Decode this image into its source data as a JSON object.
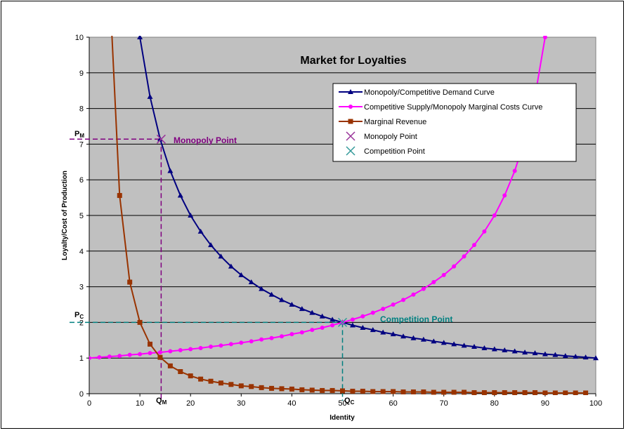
{
  "chart_data": {
    "type": "line",
    "title": "Market for Loyalties",
    "xlabel": "Identity",
    "ylabel": "Loyalty/Cost of Production",
    "xlim": [
      0,
      100
    ],
    "ylim": [
      0,
      10
    ],
    "x_ticks": [
      0,
      10,
      20,
      30,
      40,
      50,
      60,
      70,
      80,
      90,
      100
    ],
    "y_ticks": [
      0,
      1,
      2,
      3,
      4,
      5,
      6,
      7,
      8,
      9,
      10
    ],
    "grid": "horizontal",
    "background": "#c0c0c0",
    "legend_position": "top-right",
    "series": [
      {
        "name": "Monopoly/Competitive Demand Curve",
        "color": "#000080",
        "marker": "triangle",
        "x": [
          10,
          12,
          14,
          16,
          18,
          20,
          22,
          24,
          26,
          28,
          30,
          32,
          34,
          36,
          38,
          40,
          42,
          44,
          46,
          48,
          50,
          52,
          54,
          56,
          58,
          60,
          62,
          64,
          66,
          68,
          70,
          72,
          74,
          76,
          78,
          80,
          82,
          84,
          86,
          88,
          90,
          92,
          94,
          96,
          98,
          100
        ],
        "y": [
          10,
          8.33,
          7.14,
          6.25,
          5.56,
          5,
          4.55,
          4.17,
          3.85,
          3.57,
          3.33,
          3.13,
          2.94,
          2.78,
          2.63,
          2.5,
          2.38,
          2.27,
          2.17,
          2.08,
          2,
          1.92,
          1.85,
          1.79,
          1.72,
          1.67,
          1.61,
          1.56,
          1.52,
          1.47,
          1.43,
          1.39,
          1.35,
          1.32,
          1.28,
          1.25,
          1.22,
          1.19,
          1.16,
          1.14,
          1.11,
          1.09,
          1.06,
          1.04,
          1.02,
          1
        ]
      },
      {
        "name": "Competitive Supply/Monopoly Marginal Costs Curve",
        "color": "#ff00ff",
        "marker": "circle",
        "x": [
          0,
          2,
          4,
          6,
          8,
          10,
          12,
          14,
          16,
          18,
          20,
          22,
          24,
          26,
          28,
          30,
          32,
          34,
          36,
          38,
          40,
          42,
          44,
          46,
          48,
          50,
          52,
          54,
          56,
          58,
          60,
          62,
          64,
          66,
          68,
          70,
          72,
          74,
          76,
          78,
          80,
          82,
          84,
          86,
          88,
          90
        ],
        "y": [
          1,
          1.02,
          1.04,
          1.06,
          1.09,
          1.11,
          1.14,
          1.16,
          1.19,
          1.22,
          1.25,
          1.28,
          1.32,
          1.35,
          1.39,
          1.43,
          1.47,
          1.52,
          1.56,
          1.61,
          1.67,
          1.72,
          1.79,
          1.85,
          1.92,
          2,
          2.08,
          2.17,
          2.27,
          2.38,
          2.5,
          2.63,
          2.78,
          2.94,
          3.13,
          3.33,
          3.57,
          3.85,
          4.17,
          4.55,
          5,
          5.56,
          6.25,
          7.14,
          8.33,
          10
        ]
      },
      {
        "name": "Marginal Revenue",
        "color": "#993300",
        "marker": "square",
        "x": [
          4.5,
          6,
          8,
          10,
          12,
          14,
          16,
          18,
          20,
          22,
          24,
          26,
          28,
          30,
          32,
          34,
          36,
          38,
          40,
          42,
          44,
          46,
          48,
          50,
          52,
          54,
          56,
          58,
          60,
          62,
          64,
          66,
          68,
          70,
          72,
          74,
          76,
          78,
          80,
          82,
          84,
          86,
          88,
          90,
          92,
          94,
          96,
          98
        ],
        "y": [
          10,
          5.56,
          3.13,
          2,
          1.39,
          1.02,
          0.78,
          0.62,
          0.5,
          0.41,
          0.35,
          0.3,
          0.26,
          0.22,
          0.2,
          0.17,
          0.15,
          0.14,
          0.13,
          0.11,
          0.1,
          0.09,
          0.09,
          0.08,
          0.07,
          0.07,
          0.06,
          0.06,
          0.06,
          0.05,
          0.05,
          0.05,
          0.04,
          0.04,
          0.04,
          0.04,
          0.03,
          0.03,
          0.03,
          0.03,
          0.03,
          0.03,
          0.03,
          0.02,
          0.02,
          0.02,
          0.02,
          0.02
        ]
      },
      {
        "name": "Monopoly Point",
        "color": "#993399",
        "marker": "x",
        "x": [
          14.2
        ],
        "y": [
          7.14
        ]
      },
      {
        "name": "Competition Point",
        "color": "#339999",
        "marker": "x",
        "x": [
          50
        ],
        "y": [
          2
        ]
      }
    ],
    "annotations": {
      "monopoly_point_label": "Monopoly Point",
      "competition_point_label": "Competition Point",
      "pm_main": "P",
      "pm_sub": "M",
      "pc_main": "P",
      "pc_sub": "C",
      "qm_main": "Q",
      "qm_sub": "M",
      "qc_main": "Q",
      "qc_sub": "C"
    },
    "reference_lines": {
      "monopoly": {
        "x": 14.2,
        "y": 7.14,
        "color": "#800080"
      },
      "competition": {
        "x": 50,
        "y": 2,
        "color": "#008080"
      }
    }
  }
}
